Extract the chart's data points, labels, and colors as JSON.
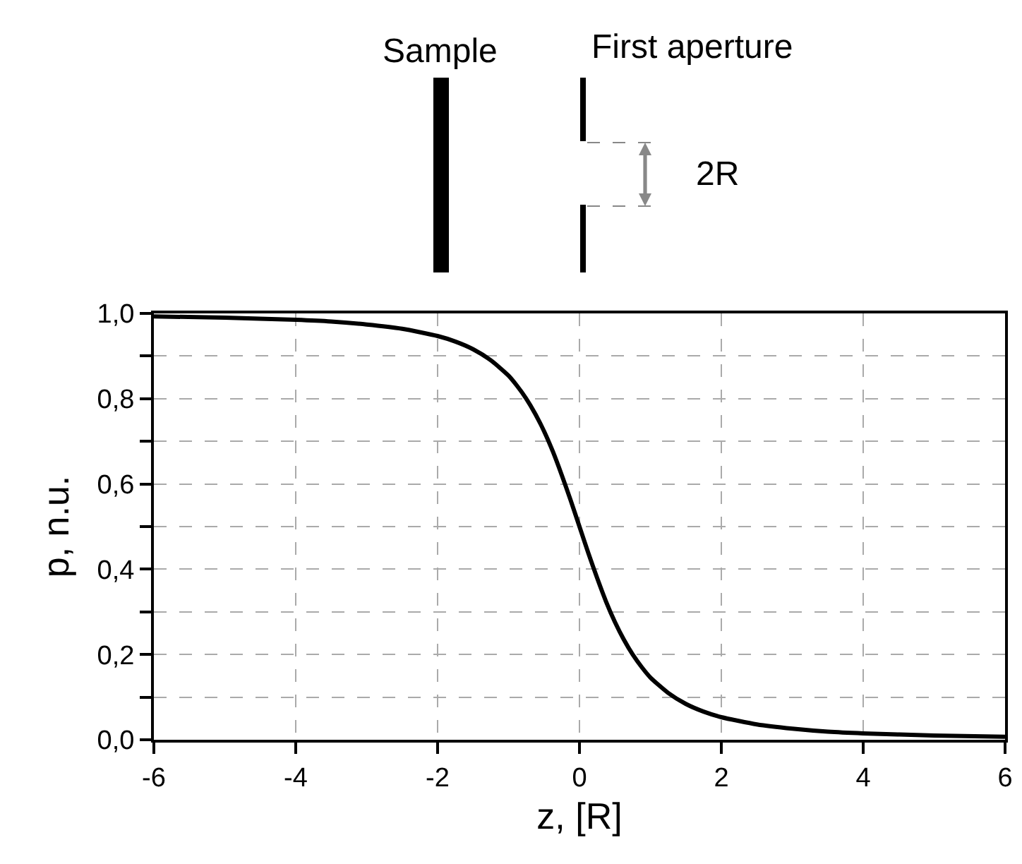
{
  "chart_data": {
    "type": "line",
    "xlabel": "z, [R]",
    "ylabel": "p, n.u.",
    "annotations": [
      "Sample",
      "First aperture",
      "2R"
    ],
    "x": [
      -6,
      -5,
      -4,
      -3.5,
      -3,
      -2.5,
      -2,
      -1.75,
      -1.5,
      -1.25,
      -1,
      -0.875,
      -0.75,
      -0.625,
      -0.5,
      -0.375,
      -0.25,
      -0.125,
      0,
      0.125,
      0.25,
      0.375,
      0.5,
      0.625,
      0.75,
      0.875,
      1,
      1.25,
      1.5,
      1.75,
      2,
      2.5,
      3,
      3.5,
      4,
      5,
      6
    ],
    "series": [
      {
        "color": "#000000",
        "values": [
          0.993,
          0.99,
          0.985,
          0.981,
          0.974,
          0.964,
          0.947,
          0.934,
          0.916,
          0.89,
          0.854,
          0.829,
          0.8,
          0.765,
          0.724,
          0.676,
          0.621,
          0.562,
          0.5,
          0.438,
          0.379,
          0.324,
          0.276,
          0.235,
          0.2,
          0.171,
          0.146,
          0.11,
          0.084,
          0.066,
          0.053,
          0.036,
          0.026,
          0.019,
          0.015,
          0.01,
          0.007
        ]
      }
    ],
    "xlim": [
      -6,
      6
    ],
    "xticks": [
      -6,
      -4,
      -2,
      0,
      2,
      4,
      6
    ],
    "ylim": [
      0,
      1
    ],
    "yticks": [
      {
        "value": 0,
        "label": "0,0"
      },
      {
        "value": 0.1,
        "label": null
      },
      {
        "value": 0.2,
        "label": "0,2"
      },
      {
        "value": 0.3,
        "label": null
      },
      {
        "value": 0.4,
        "label": "0,4"
      },
      {
        "value": 0.5,
        "label": null
      },
      {
        "value": 0.6,
        "label": "0,6"
      },
      {
        "value": 0.7,
        "label": null
      },
      {
        "value": 0.8,
        "label": "0,8"
      },
      {
        "value": 0.9,
        "label": null
      },
      {
        "value": 1,
        "label": "1,0"
      }
    ],
    "grid": true,
    "marker": "none",
    "line_style": "solid"
  }
}
